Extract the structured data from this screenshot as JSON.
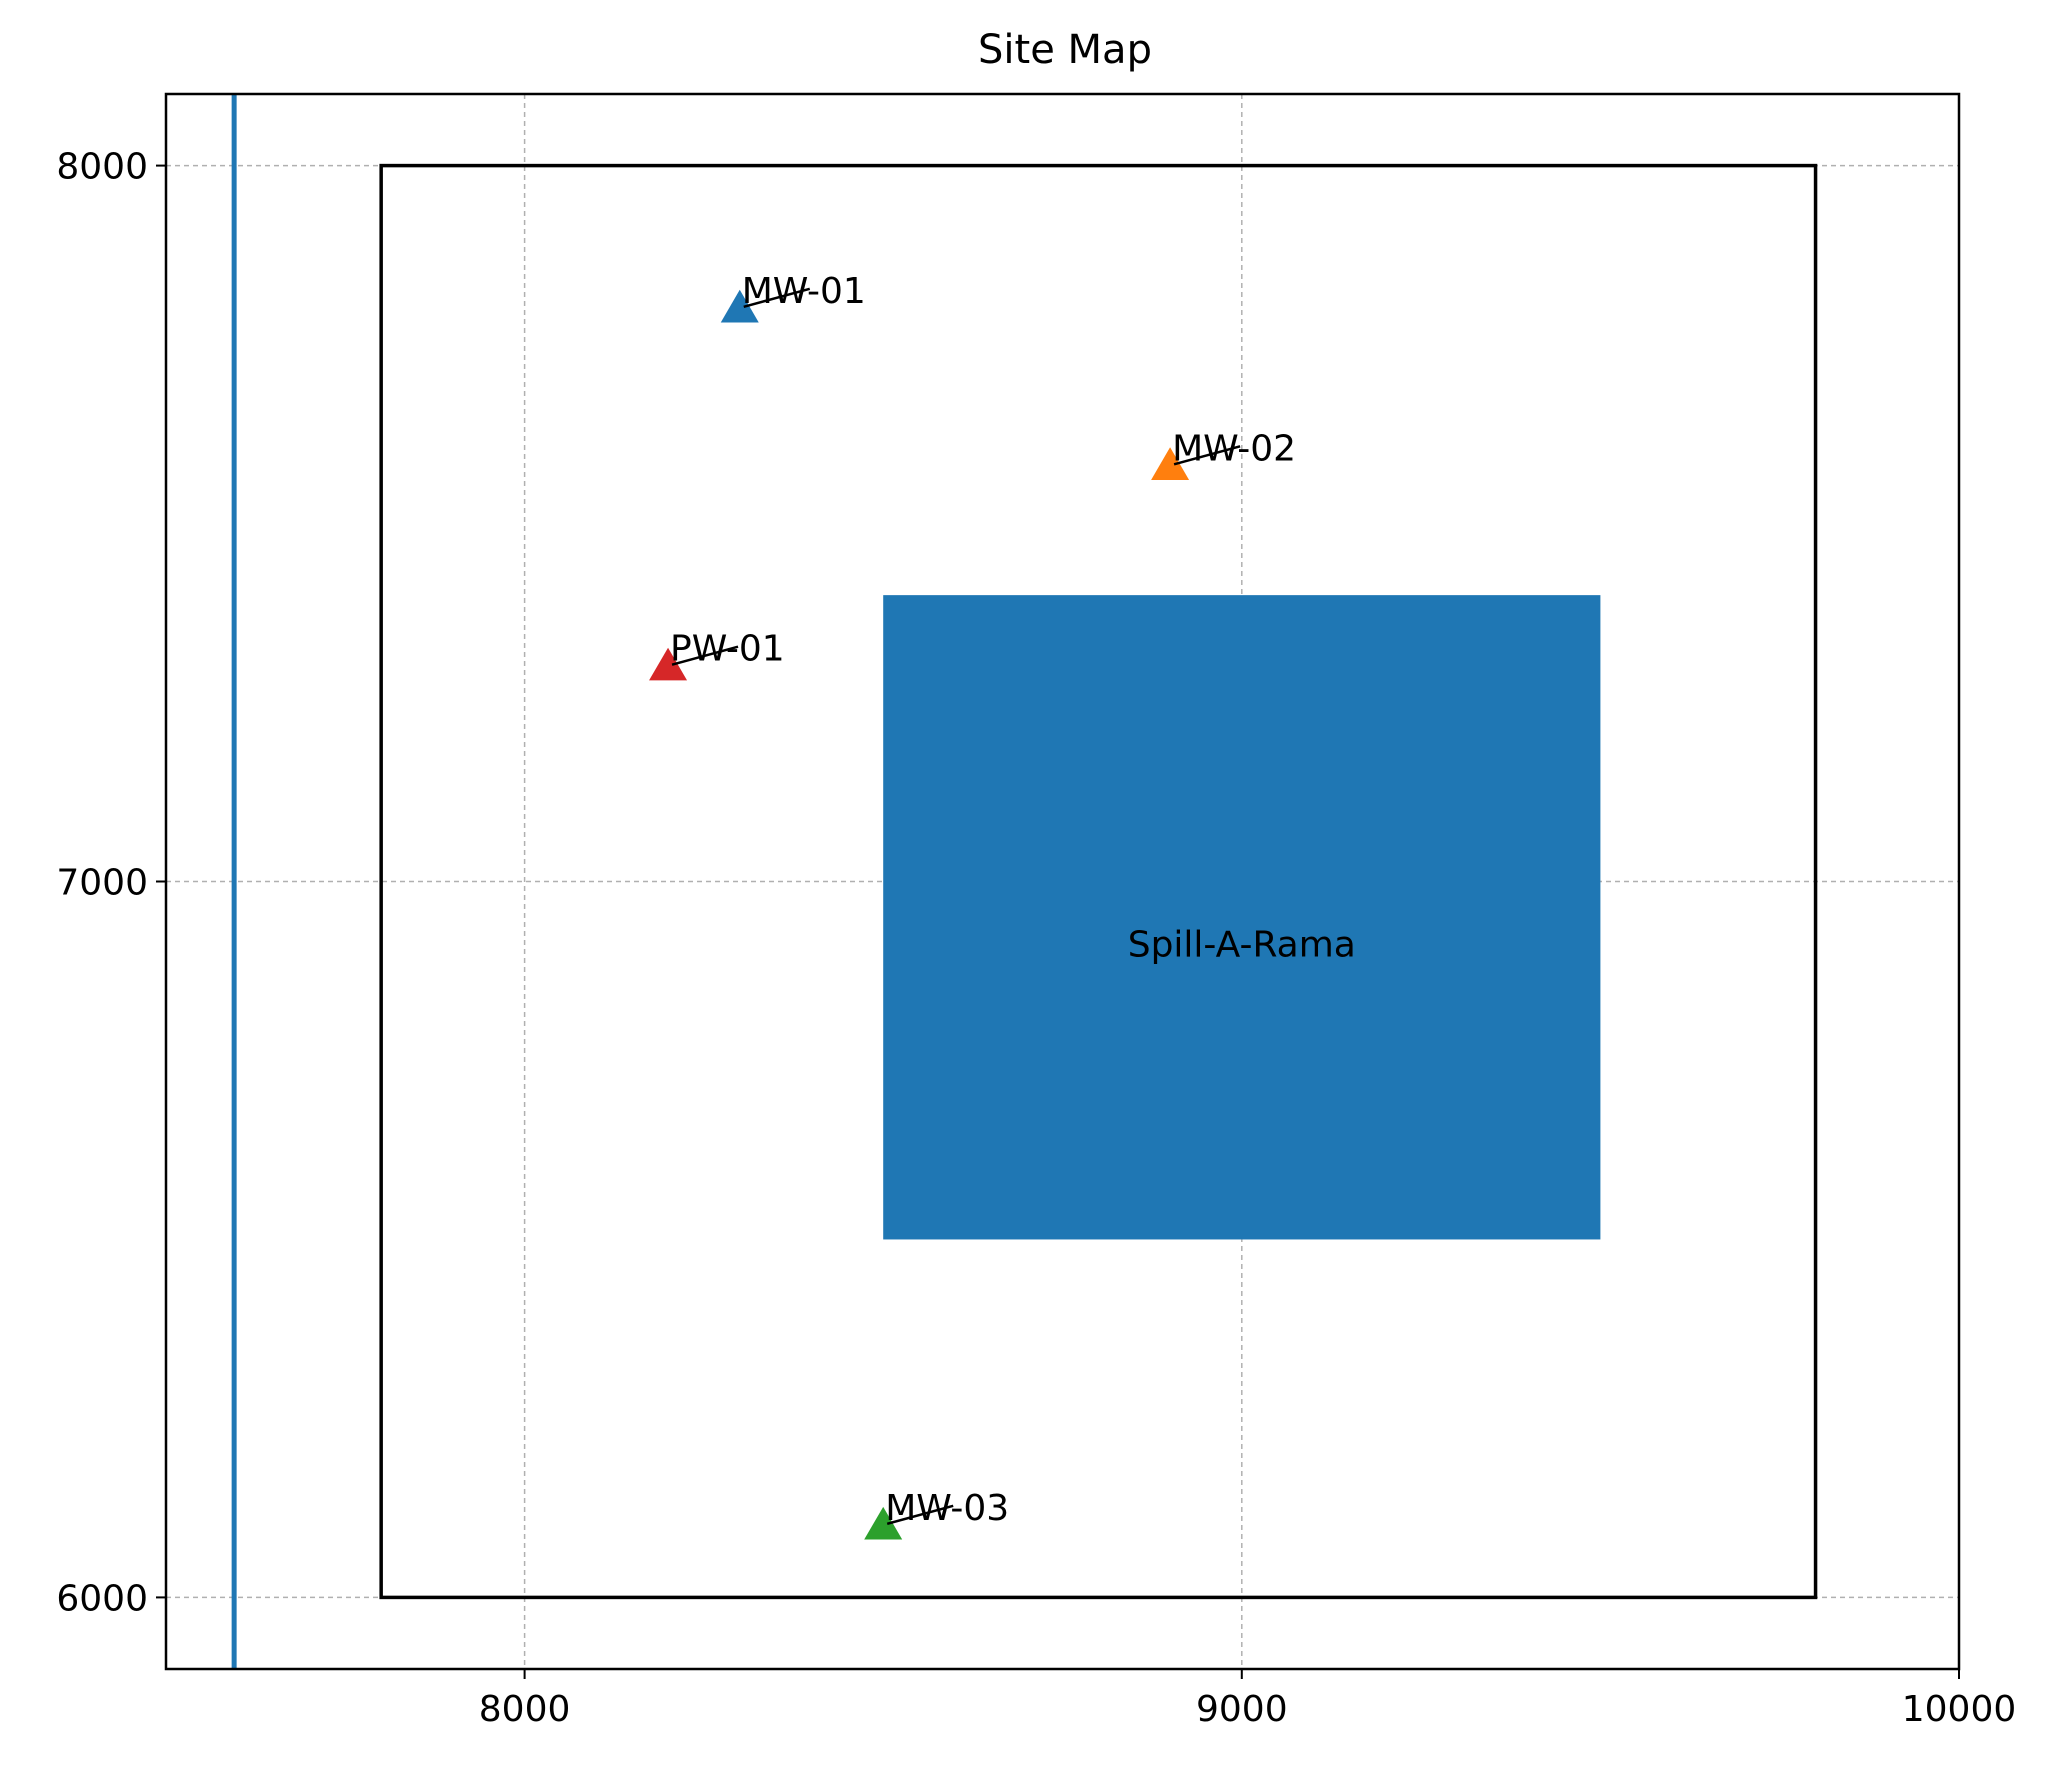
{
  "chart_data": {
    "type": "scatter",
    "title": "Site Map",
    "xlabel": "",
    "ylabel": "",
    "xlim": [
      7500,
      10000
    ],
    "ylim": [
      5900,
      8100
    ],
    "xticks": [
      8000,
      9000,
      10000
    ],
    "yticks": [
      6000,
      7000,
      8000
    ],
    "grid": true,
    "site_boundary": {
      "x": [
        7800,
        9800
      ],
      "y": [
        6000,
        8000
      ],
      "color": "#000000"
    },
    "vertical_line": {
      "x": 7595,
      "color": "#1f77b4"
    },
    "spill_area": {
      "label": "Spill-A-Rama",
      "x": [
        8500,
        9500
      ],
      "y": [
        6500,
        7400
      ],
      "color": "#1f77b4"
    },
    "wells": [
      {
        "name": "MW-01",
        "x": 8300,
        "y": 7800,
        "color": "#1f77b4"
      },
      {
        "name": "MW-02",
        "x": 8900,
        "y": 7580,
        "color": "#ff7f0e"
      },
      {
        "name": "PW-01",
        "x": 8200,
        "y": 7300,
        "color": "#d62728"
      },
      {
        "name": "MW-03",
        "x": 8500,
        "y": 6100,
        "color": "#2ca02c"
      }
    ]
  }
}
